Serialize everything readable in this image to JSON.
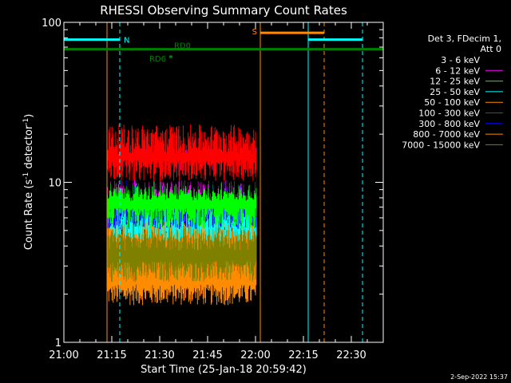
{
  "chart_data": {
    "type": "line",
    "title": "RHESSI Observing Summary Count Rates",
    "xlabel": "Start Time (25-Jan-18 20:59:42)",
    "ylabel_main": "Count Rate (s",
    "ylabel_sup": "-1",
    "ylabel_mid": " detector",
    "ylabel_end": ")",
    "yscale": "log",
    "ylim": [
      1,
      100
    ],
    "xlim_minutes": [
      0,
      100
    ],
    "x_ticks": [
      {
        "label": "21:00",
        "m": 0
      },
      {
        "label": "21:15",
        "m": 15
      },
      {
        "label": "21:30",
        "m": 30
      },
      {
        "label": "21:45",
        "m": 45
      },
      {
        "label": "22:00",
        "m": 60
      },
      {
        "label": "22:15",
        "m": 75
      },
      {
        "label": "22:30",
        "m": 90
      }
    ],
    "y_ticks": [
      {
        "label": "100",
        "v": 100
      },
      {
        "label": "10",
        "v": 10
      },
      {
        "label": "1",
        "v": 1
      }
    ],
    "legend_header": [
      "Det 3, FDecim 1,",
      "Att 0"
    ],
    "data_span_minutes": [
      13.5,
      60.2
    ],
    "series": [
      {
        "name": "3 - 6 keV",
        "color": "#000000",
        "low": 9.0,
        "high": 15.5
      },
      {
        "name": "6 - 12 keV",
        "color": "#ff00ff",
        "low": 9.5,
        "high": 14.5
      },
      {
        "name": "12 - 25 keV",
        "color": "#00ff00",
        "low": 6.0,
        "high": 11.0
      },
      {
        "name": "25 - 50 keV",
        "color": "#00ffff",
        "low": 5.0,
        "high": 10.5
      },
      {
        "name": "50 - 100 keV",
        "color": "#ff8c00",
        "low": 2.0,
        "high": 6.0
      },
      {
        "name": "100 - 300 keV",
        "color": "#ff0000",
        "low": 12.0,
        "high": 20.0
      },
      {
        "name": "300 - 800 keV",
        "color": "#0000ff",
        "low": 6.0,
        "high": 12.0
      },
      {
        "name": "800 - 7000 keV",
        "color": "#ff8c00",
        "low": 2.8,
        "high": 5.5
      },
      {
        "name": "7000 - 15000 keV",
        "color": "#808000",
        "low": 2.8,
        "high": 5.0
      }
    ],
    "flags": [
      {
        "label": "N",
        "color": "#00ffff",
        "start_m": 0,
        "end_m": 17.5,
        "level": 78
      },
      {
        "label": "",
        "color": "#00ffff",
        "start_m": 76.5,
        "end_m": 93.5,
        "level": 78
      },
      {
        "label": "S",
        "color": "#ff8c00",
        "start_m": 61.5,
        "end_m": 81.5,
        "level": 86
      },
      {
        "label": "RD0",
        "color": "#008000",
        "start_m": 0,
        "end_m": 100,
        "level": 68
      },
      {
        "label": "RD6",
        "color": "#008000",
        "start_m": 33,
        "end_m": 34,
        "level": 61
      }
    ],
    "vlines": [
      {
        "m": 0,
        "color": "#00ffff",
        "dashed": false
      },
      {
        "m": 17.5,
        "color": "#00ffff",
        "dashed": true
      },
      {
        "m": 76.5,
        "color": "#00ffff",
        "dashed": false
      },
      {
        "m": 93.5,
        "color": "#00ffff",
        "dashed": true
      },
      {
        "m": 13.5,
        "color": "#ff8c00",
        "dashed": false
      },
      {
        "m": 61.5,
        "color": "#ff8c00",
        "dashed": false
      },
      {
        "m": 81.5,
        "color": "#ff8c00",
        "dashed": true
      }
    ]
  },
  "footer": {
    "date": "2-Sep-2022 15:37"
  }
}
